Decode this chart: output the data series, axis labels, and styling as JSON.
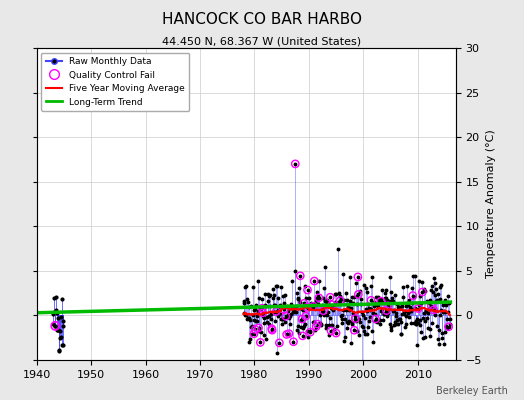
{
  "title": "HANCOCK CO BAR HARBO",
  "subtitle": "44.450 N, 68.367 W (United States)",
  "ylabel_right": "Temperature Anomaly (°C)",
  "credit": "Berkeley Earth",
  "xlim": [
    1940,
    2017
  ],
  "ylim": [
    -5,
    30
  ],
  "yticks_right": [
    -5,
    0,
    5,
    10,
    15,
    20,
    25,
    30
  ],
  "xticks": [
    1940,
    1950,
    1960,
    1970,
    1980,
    1990,
    2000,
    2010
  ],
  "bg_color": "#e8e8e8",
  "plot_bg_color": "#ffffff",
  "grid_color": "#cccccc",
  "raw_line_color": "#4444ff",
  "raw_marker_color": "#000000",
  "qc_fail_color": "#ff00ff",
  "moving_avg_color": "#ff0000",
  "trend_color": "#00bb00",
  "seed": 42
}
